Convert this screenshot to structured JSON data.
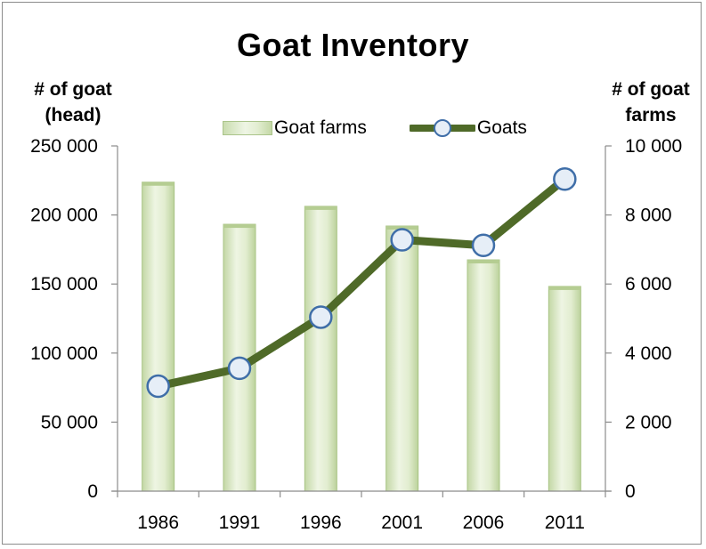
{
  "chart_data": {
    "type": "bar",
    "title": "Goat Inventory",
    "categories": [
      "1986",
      "1991",
      "1996",
      "2001",
      "2006",
      "2011"
    ],
    "series": [
      {
        "name": "Goat farms",
        "type": "bar",
        "axis": "right",
        "values": [
          8950,
          7730,
          8250,
          7680,
          6700,
          5930
        ]
      },
      {
        "name": "Goats",
        "type": "line",
        "axis": "left",
        "values": [
          76000,
          89000,
          126000,
          182000,
          178000,
          226000
        ]
      }
    ],
    "y_left": {
      "label_line1": "# of goat",
      "label_line2": "(head)",
      "ylim": [
        0,
        250000
      ],
      "ticks": [
        "0",
        "50 000",
        "100 000",
        "150 000",
        "200 000",
        "250 000"
      ]
    },
    "y_right": {
      "label_line1": "# of goat",
      "label_line2": "farms",
      "ylim": [
        0,
        10000
      ],
      "ticks": [
        "0",
        "2 000",
        "4 000",
        "6 000",
        "8 000",
        "10 000"
      ]
    },
    "grid": false,
    "legend_position": "top",
    "colors": {
      "bar_fill": "#dde9c8",
      "bar_edge": "#a9c485",
      "line": "#4f6a28",
      "marker_fill": "#e6eef7",
      "marker_edge": "#3f6ea8"
    }
  },
  "legend": {
    "bar_label": "Goat farms",
    "line_label": "Goats"
  }
}
